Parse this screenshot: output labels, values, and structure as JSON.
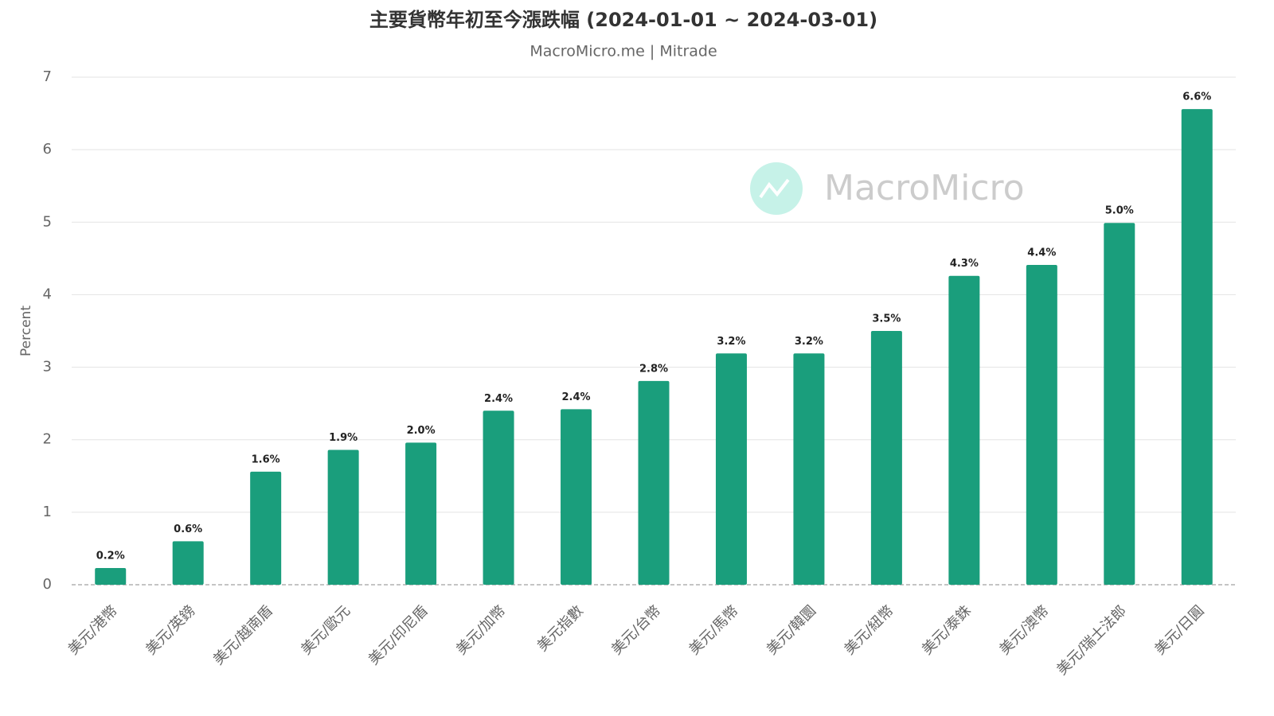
{
  "chart_data": {
    "type": "bar",
    "title": "主要貨幣年初至今漲跌幅 (2024-01-01 ~ 2024-03-01)",
    "subtitle": "MacroMicro.me | Mitrade",
    "watermark": "MacroMicro",
    "y_label": "Percent",
    "categories": [
      "美元/港幣",
      "美元/英鎊",
      "美元/越南盾",
      "美元/歐元",
      "美元/印尼盾",
      "美元/加幣",
      "美元指數",
      "美元/台幣",
      "美元/馬幣",
      "美元/韓圜",
      "美元/紐幣",
      "美元/泰銖",
      "美元/澳幣",
      "美元/瑞士法郎",
      "美元/日圓"
    ],
    "values": [
      0.23,
      0.6,
      1.56,
      1.86,
      1.96,
      2.4,
      2.42,
      2.81,
      3.19,
      3.19,
      3.5,
      4.26,
      4.41,
      4.99,
      6.56
    ],
    "value_labels": [
      "0.2%",
      "0.6%",
      "1.6%",
      "1.9%",
      "2.0%",
      "2.4%",
      "2.4%",
      "2.8%",
      "3.2%",
      "3.2%",
      "3.5%",
      "4.3%",
      "4.4%",
      "5.0%",
      "6.6%"
    ],
    "color": "#1a9e7c",
    "ylim": [
      0,
      7
    ],
    "yticks": [
      0,
      1,
      2,
      3,
      4,
      5,
      6,
      7
    ],
    "grid": true
  }
}
